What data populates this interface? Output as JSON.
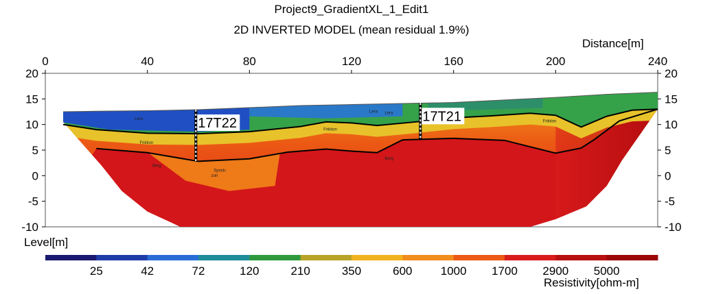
{
  "title": "Project9_GradientXL_1_Edit1",
  "subtitle": "2D INVERTED MODEL (mean residual 1.9%)",
  "chart_data": {
    "type": "heatmap",
    "title": "Project9_GradientXL_1_Edit1",
    "subtitle": "2D INVERTED MODEL (mean residual 1.9%)",
    "xlabel": "Distance[m]",
    "ylabel": "Level[m]",
    "xlim": [
      0,
      240
    ],
    "ylim": [
      -10,
      20
    ],
    "xticks": [
      0,
      40,
      80,
      120,
      160,
      200,
      240
    ],
    "yticks": [
      20,
      15,
      10,
      5,
      0,
      -5,
      -10
    ],
    "colorbar": {
      "label": "Resistivity[ohm-m]",
      "tick_labels": [
        "25",
        "42",
        "72",
        "120",
        "210",
        "350",
        "600",
        "1000",
        "1700",
        "2900",
        "5000"
      ],
      "colors": [
        "#1a1a6e",
        "#1f3da8",
        "#2a6cd6",
        "#1f8c9a",
        "#2e9a3c",
        "#b8a328",
        "#f2b21e",
        "#f08d1e",
        "#ec5a14",
        "#d91c1c",
        "#b80f0f",
        "#9c0707"
      ]
    },
    "surface_profile": {
      "x": [
        7,
        20,
        40,
        60,
        80,
        100,
        120,
        140,
        160,
        180,
        200,
        220,
        240
      ],
      "y": [
        12.5,
        12.6,
        12.7,
        12.9,
        13.3,
        13.7,
        13.9,
        14.1,
        14.3,
        14.8,
        15.3,
        15.9,
        16.3
      ]
    },
    "interface_lines": [
      {
        "x": [
          7,
          20,
          40,
          60,
          80,
          100,
          110,
          120,
          130,
          145,
          160,
          175,
          190,
          200,
          210,
          220,
          230,
          240
        ],
        "y": [
          10,
          9,
          8.3,
          8.2,
          8.6,
          9.6,
          10.5,
          10.3,
          9.8,
          10.5,
          11.3,
          11.7,
          12.2,
          11.8,
          9.5,
          11.6,
          12.8,
          13
        ]
      },
      {
        "x": [
          20,
          40,
          60,
          80,
          95,
          110,
          120,
          130,
          140,
          160,
          180,
          200,
          210,
          215,
          225,
          240
        ],
        "y": [
          5.3,
          4.5,
          2.8,
          3.3,
          4.6,
          5.2,
          4.8,
          4.5,
          7,
          7.3,
          6.9,
          4.4,
          5.4,
          7,
          10.7,
          13
        ]
      }
    ],
    "boreholes": [
      {
        "name": "17T22",
        "x": 59,
        "top": 12.9,
        "bottom": 2.8
      },
      {
        "name": "17T21",
        "x": 147,
        "top": 14.2,
        "bottom": 7.2
      }
    ],
    "annotations": [
      {
        "text": "Lera",
        "x": 35,
        "y": 10.9
      },
      {
        "text": "Friktion",
        "x": 37,
        "y": 6.2
      },
      {
        "text": "Berg",
        "x": 42,
        "y": 1.7
      },
      {
        "text": "Sprick-",
        "x": 66,
        "y": 0.8
      },
      {
        "text": "zon",
        "x": 65,
        "y": -0.2
      },
      {
        "text": "Friktion",
        "x": 109,
        "y": 8.8
      },
      {
        "text": "Lera",
        "x": 127,
        "y": 12.3
      },
      {
        "text": "Lera",
        "x": 133,
        "y": 12.0
      },
      {
        "text": "Berg",
        "x": 133,
        "y": 3.1
      },
      {
        "text": "Friktion",
        "x": 195,
        "y": 10.4
      }
    ]
  }
}
